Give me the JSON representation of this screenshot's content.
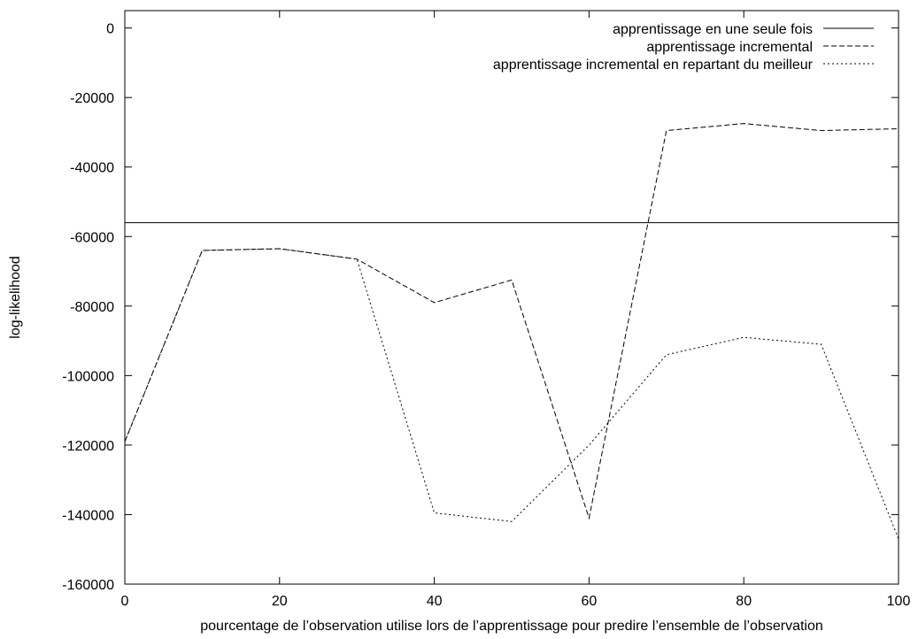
{
  "chart_data": {
    "type": "line",
    "title": "",
    "xlabel": "pourcentage de l’observation utilise lors de l’apprentissage pour predire l’ensemble de l’observation",
    "ylabel": "log-likelihood",
    "xlim": [
      0,
      100
    ],
    "ylim": [
      -160000,
      5000
    ],
    "x_ticks": [
      "0",
      "20",
      "40",
      "60",
      "80",
      "100"
    ],
    "y_ticks": [
      "0",
      "-20000",
      "-40000",
      "-60000",
      "-80000",
      "-100000",
      "-120000",
      "-140000",
      "-160000"
    ],
    "x_tick_values": [
      0,
      20,
      40,
      60,
      80,
      100
    ],
    "y_tick_values": [
      0,
      -20000,
      -40000,
      -60000,
      -80000,
      -100000,
      -120000,
      -140000,
      -160000
    ],
    "grid": false,
    "legend_position": "top-right",
    "series": [
      {
        "name": "apprentissage en une seule fois",
        "style": "solid",
        "x": [
          0,
          100
        ],
        "y": [
          -56000,
          -56000
        ]
      },
      {
        "name": "apprentissage incremental",
        "style": "dashed",
        "x": [
          0,
          10,
          20,
          30,
          40,
          50,
          60,
          70,
          80,
          90,
          100
        ],
        "y": [
          -119000,
          -64000,
          -63500,
          -66500,
          -79000,
          -72500,
          -141000,
          -29500,
          -27500,
          -29500,
          -29000
        ]
      },
      {
        "name": "apprentissage incremental en repartant du meilleur",
        "style": "dotted",
        "x": [
          0,
          10,
          20,
          30,
          40,
          50,
          60,
          70,
          80,
          90,
          100
        ],
        "y": [
          -119000,
          -64000,
          -63500,
          -66500,
          -139500,
          -142000,
          -120000,
          -94000,
          -89000,
          -91000,
          -147000
        ]
      }
    ]
  }
}
